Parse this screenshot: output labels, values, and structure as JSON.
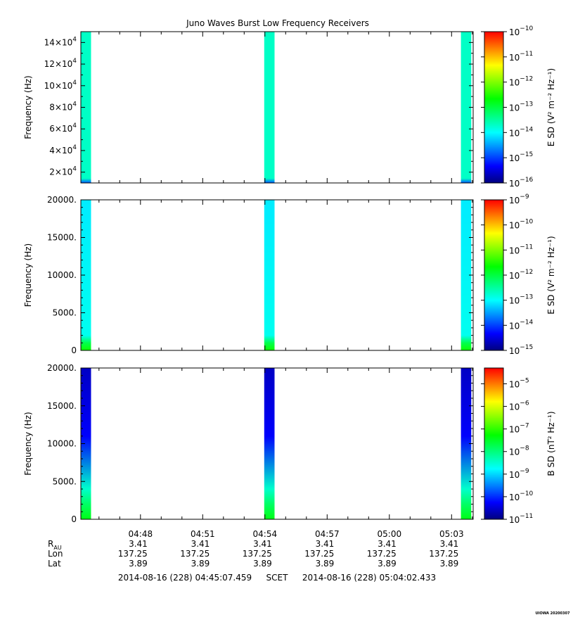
{
  "title": "Juno Waves Burst Low Frequency Receivers",
  "colors": {
    "colormap": [
      "#000080",
      "#0000ff",
      "#0080ff",
      "#00ffff",
      "#00ff80",
      "#00ff00",
      "#80ff00",
      "#ffff00",
      "#ff8000",
      "#ff0000"
    ]
  },
  "chart_data": [
    {
      "type": "heatmap",
      "name": "panel-1",
      "ylabel": "Frequency (Hz)",
      "ylim": [
        10000,
        150000
      ],
      "yticks": [
        20000,
        40000,
        60000,
        80000,
        100000,
        120000,
        140000
      ],
      "ytick_labels": [
        {
          "mant": "2×10",
          "exp": "4"
        },
        {
          "mant": "4×10",
          "exp": "4"
        },
        {
          "mant": "6×10",
          "exp": "4"
        },
        {
          "mant": "8×10",
          "exp": "4"
        },
        {
          "mant": "10×10",
          "exp": "4"
        },
        {
          "mant": "12×10",
          "exp": "4"
        },
        {
          "mant": "14×10",
          "exp": "4"
        }
      ],
      "colorbar": {
        "label": "E SD (V² m⁻² Hz⁻¹)",
        "log_range": [
          -16,
          -10
        ],
        "tick_exps": [
          "-16",
          "-15",
          "-14",
          "-13",
          "-12",
          "-11",
          "-10"
        ]
      },
      "bursts": [
        {
          "start": "04:45:07",
          "end": "04:45:37",
          "level": -13.7,
          "low_level": -14.9
        },
        {
          "start": "04:53:58",
          "end": "04:54:28",
          "level": -13.7,
          "low_level": -14.9
        },
        {
          "start": "05:03:27",
          "end": "05:03:57",
          "level": -13.7,
          "low_level": -14.9
        }
      ]
    },
    {
      "type": "heatmap",
      "name": "panel-2",
      "ylabel": "Frequency (Hz)",
      "ylim": [
        0,
        20000
      ],
      "yticks": [
        0,
        5000,
        10000,
        15000,
        20000
      ],
      "ytick_labels": [
        {
          "mant": "0",
          "exp": ""
        },
        {
          "mant": "5000.",
          "exp": ""
        },
        {
          "mant": "10000.",
          "exp": ""
        },
        {
          "mant": "15000.",
          "exp": ""
        },
        {
          "mant": "20000.",
          "exp": ""
        }
      ],
      "colorbar": {
        "label": "E SD (V² m⁻² Hz⁻¹)",
        "log_range": [
          -15,
          -9
        ],
        "tick_exps": [
          "-15",
          "-14",
          "-13",
          "-12",
          "-11",
          "-10",
          "-9"
        ]
      },
      "bursts": [
        {
          "start": "04:45:07",
          "end": "04:45:37",
          "level": -13.1,
          "low_level": -11.6
        },
        {
          "start": "04:53:58",
          "end": "04:54:28",
          "level": -13.1,
          "low_level": -11.6
        },
        {
          "start": "05:03:27",
          "end": "05:03:57",
          "level": -13.1,
          "low_level": -11.6
        }
      ]
    },
    {
      "type": "heatmap",
      "name": "panel-3",
      "ylabel": "Frequency (Hz)",
      "ylim": [
        0,
        20000
      ],
      "yticks": [
        0,
        5000,
        10000,
        15000,
        20000
      ],
      "ytick_labels": [
        {
          "mant": "0",
          "exp": ""
        },
        {
          "mant": "5000.",
          "exp": ""
        },
        {
          "mant": "10000.",
          "exp": ""
        },
        {
          "mant": "15000.",
          "exp": ""
        },
        {
          "mant": "20000.",
          "exp": ""
        }
      ],
      "colorbar": {
        "label": "B SD (nT² Hz⁻¹)",
        "log_range": [
          -11,
          -4.3
        ],
        "tick_exps": [
          "-11",
          "-10",
          "-9",
          "-8",
          "-7",
          "-6",
          "-5"
        ]
      },
      "bursts": [
        {
          "start": "04:45:07",
          "end": "04:45:37",
          "top_level": -10.6,
          "bottom_level": -8.2
        },
        {
          "start": "04:53:58",
          "end": "04:54:28",
          "top_level": -10.6,
          "bottom_level": -8.2
        },
        {
          "start": "05:03:27",
          "end": "05:03:57",
          "top_level": -10.6,
          "bottom_level": -8.2
        }
      ]
    }
  ],
  "time_axis": {
    "range": [
      "04:45:07.459",
      "05:04:02.433"
    ],
    "major_ticks": [
      "04:48",
      "04:51",
      "04:54",
      "04:57",
      "05:00",
      "05:03"
    ],
    "minor_step_minutes": 1
  },
  "ephemeris": {
    "rows": [
      {
        "label": "R",
        "sub": "AU",
        "values": [
          "3.41",
          "3.41",
          "3.41",
          "3.41",
          "3.41",
          "3.41"
        ]
      },
      {
        "label": "Lon",
        "sub": "",
        "values": [
          "137.25",
          "137.25",
          "137.25",
          "137.25",
          "137.25",
          "137.25"
        ]
      },
      {
        "label": "Lat",
        "sub": "",
        "values": [
          "3.89",
          "3.89",
          "3.89",
          "3.89",
          "3.89",
          "3.89"
        ]
      }
    ]
  },
  "footer": {
    "start": "2014-08-16 (228) 04:45:07.459",
    "scet": "SCET",
    "end": "2014-08-16 (228) 05:04:02.433"
  },
  "credit": "UIOWA 20200307"
}
